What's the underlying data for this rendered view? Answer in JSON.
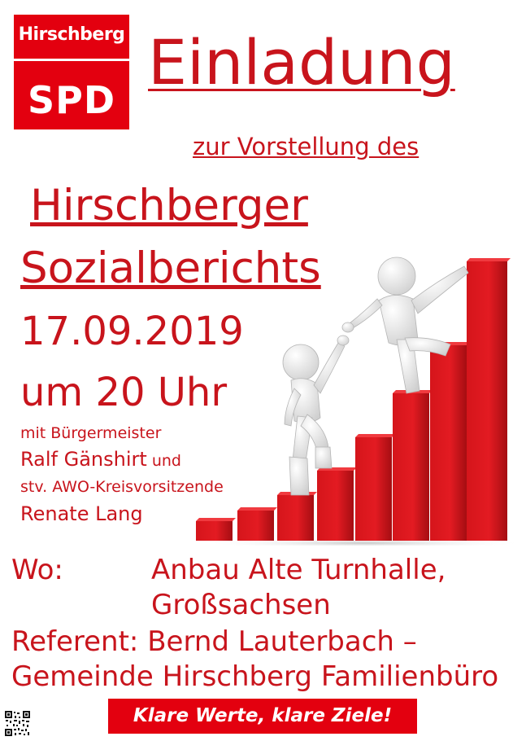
{
  "logo": {
    "city": "Hirschberg",
    "party": "SPD"
  },
  "title": "Einladung",
  "subtitle": "zur Vorstellung des ",
  "heading": {
    "line1": "Hirschberger",
    "line2": "Sozialberichts"
  },
  "date": "17.09.2019",
  "time": "um 20 Uhr",
  "guests": {
    "intro": "mit Bürgermeister",
    "mayor_name": "Ralf Gänshirt",
    "mayor_suffix": " und",
    "awo_role": "stv. AWO-Kreisvorsitzende",
    "awo_name": "Renate Lang"
  },
  "location": {
    "label": "Wo:",
    "line1": "Anbau Alte Turnhalle,",
    "line2": "Großsachsen"
  },
  "speaker": {
    "line1": "Referent: Bernd Lauterbach –",
    "line2": "Gemeinde Hirschberg Familienbüro"
  },
  "slogan": "Klare Werte, klare Ziele!",
  "colors": {
    "brand_red": "#e3000f",
    "text_red": "#c8141c",
    "background": "#ffffff"
  },
  "icons": {
    "qr": "qr-code-icon",
    "illustration": "stairs-figures-illustration"
  }
}
